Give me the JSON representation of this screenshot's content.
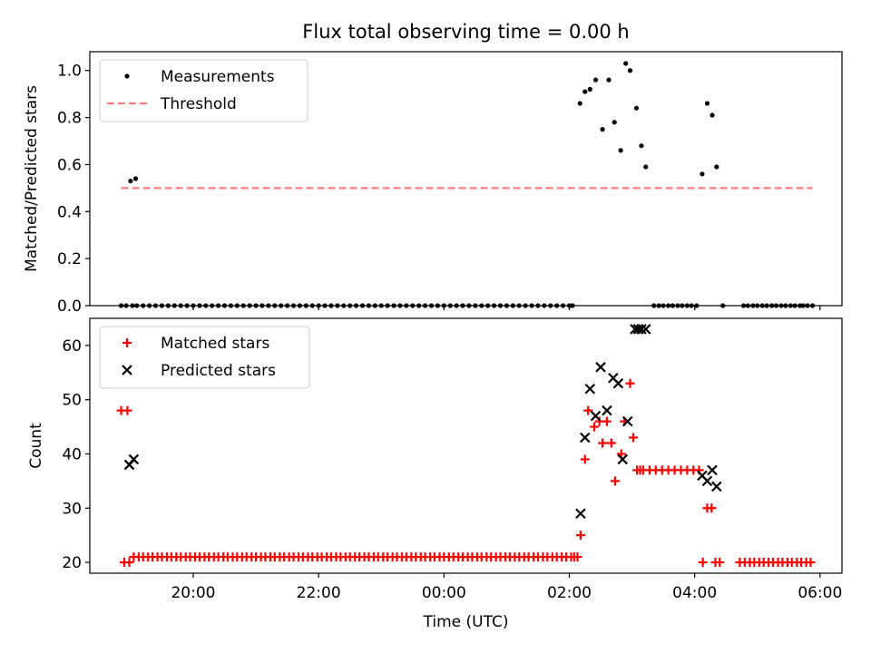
{
  "figure": {
    "title": "Flux total observing time = 0.00 h",
    "xlabel": "Time (UTC)",
    "xticks": [
      {
        "t": 20,
        "label": "20:00"
      },
      {
        "t": 22,
        "label": "22:00"
      },
      {
        "t": 24,
        "label": "00:00"
      },
      {
        "t": 26,
        "label": "02:00"
      },
      {
        "t": 28,
        "label": "04:00"
      },
      {
        "t": 30,
        "label": "06:00"
      }
    ]
  },
  "colors": {
    "measurements": "#000000",
    "threshold": "#ff7f7f",
    "matched": "#ff0000",
    "predicted": "#000000"
  },
  "chart_data": [
    {
      "type": "scatter",
      "ylabel": "Matched/Predicted stars",
      "xlim": [
        18.35,
        30.35
      ],
      "ylim": [
        0,
        1.08
      ],
      "yticks": [
        0.0,
        0.2,
        0.4,
        0.6,
        0.8,
        1.0
      ],
      "legend_position": "top-left",
      "grid": false,
      "series": [
        {
          "name": "Measurements",
          "kind": "points",
          "x": [
            18.85,
            18.93,
            19.03,
            19.1,
            19.2,
            19.3,
            19.4,
            19.5,
            19.6,
            19.7,
            19.8,
            19.9,
            20.0,
            20.1,
            20.2,
            20.3,
            20.4,
            20.5,
            20.6,
            20.7,
            20.8,
            20.9,
            21.0,
            21.1,
            21.2,
            21.3,
            21.4,
            21.5,
            21.6,
            21.7,
            21.8,
            21.9,
            22.0,
            22.1,
            22.2,
            22.3,
            22.4,
            22.5,
            22.6,
            22.7,
            22.8,
            22.9,
            23.0,
            23.1,
            23.2,
            23.3,
            23.4,
            23.5,
            23.6,
            23.7,
            23.8,
            23.9,
            24.0,
            24.1,
            24.2,
            24.3,
            24.4,
            24.5,
            24.6,
            24.7,
            24.8,
            24.9,
            25.0,
            25.1,
            25.2,
            25.3,
            25.4,
            25.5,
            25.6,
            25.7,
            25.8,
            25.9,
            26.0,
            26.05,
            26.17,
            26.25,
            26.33,
            26.42,
            26.53,
            26.63,
            26.72,
            26.82,
            26.9,
            26.97,
            27.07,
            27.15,
            27.22,
            27.35,
            27.43,
            27.5,
            27.58,
            27.65,
            27.73,
            27.8,
            27.88,
            27.95,
            28.03,
            28.12,
            28.2,
            28.28,
            28.35,
            28.45,
            28.78,
            28.85,
            28.93,
            29.0,
            29.08,
            29.15,
            29.23,
            29.3,
            29.38,
            29.45,
            29.53,
            29.6,
            29.68,
            29.73,
            29.8,
            29.88,
            19.0,
            19.08
          ],
          "y": [
            0,
            0,
            0,
            0,
            0,
            0,
            0,
            0,
            0,
            0,
            0,
            0,
            0,
            0,
            0,
            0,
            0,
            0,
            0,
            0,
            0,
            0,
            0,
            0,
            0,
            0,
            0,
            0,
            0,
            0,
            0,
            0,
            0,
            0,
            0,
            0,
            0,
            0,
            0,
            0,
            0,
            0,
            0,
            0,
            0,
            0,
            0,
            0,
            0,
            0,
            0,
            0,
            0,
            0,
            0,
            0,
            0,
            0,
            0,
            0,
            0,
            0,
            0,
            0,
            0,
            0,
            0,
            0,
            0,
            0,
            0,
            0,
            0,
            0,
            0.86,
            0.91,
            0.92,
            0.96,
            0.75,
            0.96,
            0.78,
            0.66,
            1.03,
            1.0,
            0.84,
            0.68,
            0.59,
            0,
            0,
            0,
            0,
            0,
            0,
            0,
            0,
            0,
            0,
            0.56,
            0.86,
            0.81,
            0.59,
            0,
            0,
            0,
            0,
            0,
            0,
            0,
            0,
            0,
            0,
            0,
            0,
            0,
            0,
            0,
            0,
            0,
            0.53,
            0.54
          ]
        },
        {
          "name": "Threshold",
          "kind": "dashed-line",
          "x": [
            18.85,
            29.88
          ],
          "y": [
            0.5,
            0.5
          ]
        }
      ]
    },
    {
      "type": "scatter",
      "ylabel": "Count",
      "xlim": [
        18.35,
        30.35
      ],
      "ylim": [
        18,
        65
      ],
      "yticks": [
        20,
        30,
        40,
        50,
        60
      ],
      "legend_position": "top-left",
      "grid": false,
      "series": [
        {
          "name": "Matched stars",
          "kind": "plus",
          "x": [
            18.9,
            18.98,
            19.05,
            19.13,
            19.2,
            19.28,
            19.35,
            19.43,
            19.5,
            19.58,
            19.65,
            19.73,
            19.8,
            19.88,
            19.95,
            20.03,
            20.1,
            20.18,
            20.25,
            20.33,
            20.4,
            20.48,
            20.55,
            20.63,
            20.7,
            20.78,
            20.85,
            20.93,
            21.0,
            21.08,
            21.15,
            21.23,
            21.3,
            21.38,
            21.45,
            21.53,
            21.6,
            21.68,
            21.75,
            21.83,
            21.9,
            21.98,
            22.05,
            22.13,
            22.2,
            22.28,
            22.35,
            22.43,
            22.5,
            22.58,
            22.65,
            22.73,
            22.8,
            22.88,
            22.95,
            23.03,
            23.1,
            23.18,
            23.25,
            23.33,
            23.4,
            23.48,
            23.55,
            23.63,
            23.7,
            23.78,
            23.85,
            23.93,
            24.0,
            24.08,
            24.15,
            24.23,
            24.3,
            24.38,
            24.45,
            24.53,
            24.6,
            24.68,
            24.75,
            24.83,
            24.9,
            24.98,
            25.05,
            25.13,
            25.2,
            25.28,
            25.35,
            25.43,
            25.5,
            25.58,
            25.65,
            25.73,
            25.8,
            25.88,
            25.95,
            26.03,
            26.08,
            26.13,
            26.18,
            26.25,
            26.3,
            26.4,
            26.48,
            26.53,
            26.6,
            26.67,
            26.73,
            26.83,
            26.88,
            26.97,
            27.02,
            27.08,
            27.13,
            27.18,
            27.28,
            27.38,
            27.48,
            27.58,
            27.68,
            27.78,
            27.88,
            27.98,
            28.07,
            28.13,
            28.2,
            28.27,
            28.33,
            28.4,
            28.72,
            28.8,
            28.88,
            28.95,
            29.03,
            29.1,
            29.18,
            29.25,
            29.33,
            29.4,
            29.48,
            29.55,
            29.63,
            29.7,
            29.78,
            29.85,
            18.85,
            18.95
          ],
          "y": [
            20,
            20,
            21,
            21,
            21,
            21,
            21,
            21,
            21,
            21,
            21,
            21,
            21,
            21,
            21,
            21,
            21,
            21,
            21,
            21,
            21,
            21,
            21,
            21,
            21,
            21,
            21,
            21,
            21,
            21,
            21,
            21,
            21,
            21,
            21,
            21,
            21,
            21,
            21,
            21,
            21,
            21,
            21,
            21,
            21,
            21,
            21,
            21,
            21,
            21,
            21,
            21,
            21,
            21,
            21,
            21,
            21,
            21,
            21,
            21,
            21,
            21,
            21,
            21,
            21,
            21,
            21,
            21,
            21,
            21,
            21,
            21,
            21,
            21,
            21,
            21,
            21,
            21,
            21,
            21,
            21,
            21,
            21,
            21,
            21,
            21,
            21,
            21,
            21,
            21,
            21,
            21,
            21,
            21,
            21,
            21,
            21,
            21,
            25,
            39,
            48,
            45,
            46,
            42,
            46,
            42,
            35,
            40,
            46,
            53,
            43,
            37,
            37,
            37,
            37,
            37,
            37,
            37,
            37,
            37,
            37,
            37,
            37,
            20,
            30,
            30,
            20,
            20,
            20,
            20,
            20,
            20,
            20,
            20,
            20,
            20,
            20,
            20,
            20,
            20,
            20,
            20,
            20,
            20,
            48,
            48
          ]
        },
        {
          "name": "Predicted stars",
          "kind": "x",
          "x": [
            18.98,
            19.05,
            26.18,
            26.25,
            26.33,
            26.42,
            26.5,
            26.6,
            26.7,
            26.78,
            26.85,
            26.93,
            27.05,
            27.1,
            27.15,
            27.22,
            28.12,
            28.2,
            28.28,
            28.35
          ],
          "y": [
            38,
            39,
            29,
            43,
            52,
            47,
            56,
            48,
            54,
            53,
            39,
            46,
            63,
            63,
            63,
            63,
            36,
            35,
            37,
            34
          ]
        }
      ]
    }
  ]
}
